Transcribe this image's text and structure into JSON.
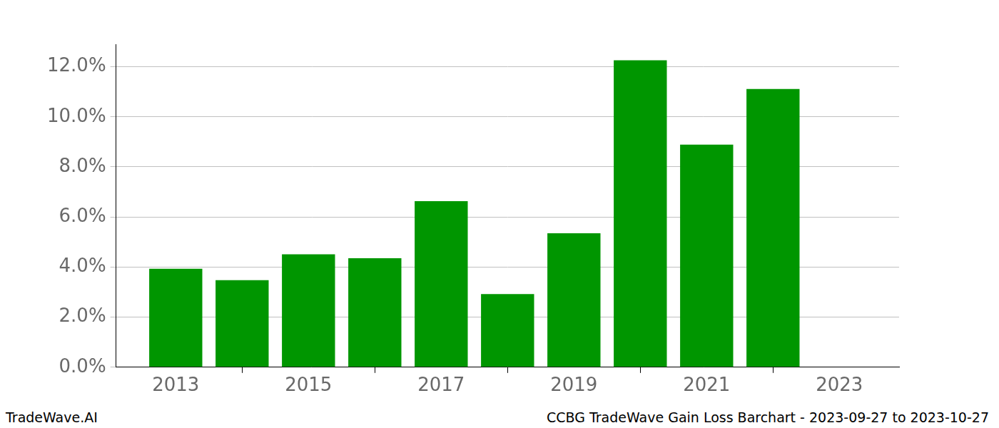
{
  "chart_data": {
    "type": "bar",
    "x": [
      2013,
      2014,
      2015,
      2016,
      2017,
      2018,
      2019,
      2020,
      2021,
      2022
    ],
    "values": [
      3.93,
      3.48,
      4.51,
      4.35,
      6.63,
      2.92,
      5.35,
      12.26,
      8.89,
      11.11
    ],
    "color": "#009600",
    "xlim": [
      2012.1,
      2023.9
    ],
    "xticks": [
      2013,
      2015,
      2017,
      2019,
      2021,
      2023
    ],
    "ylim": [
      0,
      12.9
    ],
    "yticks": [
      {
        "value": 0,
        "label": "0.0%"
      },
      {
        "value": 2,
        "label": "2.0%"
      },
      {
        "value": 4,
        "label": "4.0%"
      },
      {
        "value": 6,
        "label": "6.0%"
      },
      {
        "value": 8,
        "label": "8.0%"
      },
      {
        "value": 10,
        "label": "10.0%"
      },
      {
        "value": 12,
        "label": "12.0%"
      }
    ],
    "grid": true,
    "annotations": [
      "TradeWave.AI",
      "CCBG TradeWave Gain Loss Barchart - 2023-09-27 to 2023-10-27"
    ]
  }
}
